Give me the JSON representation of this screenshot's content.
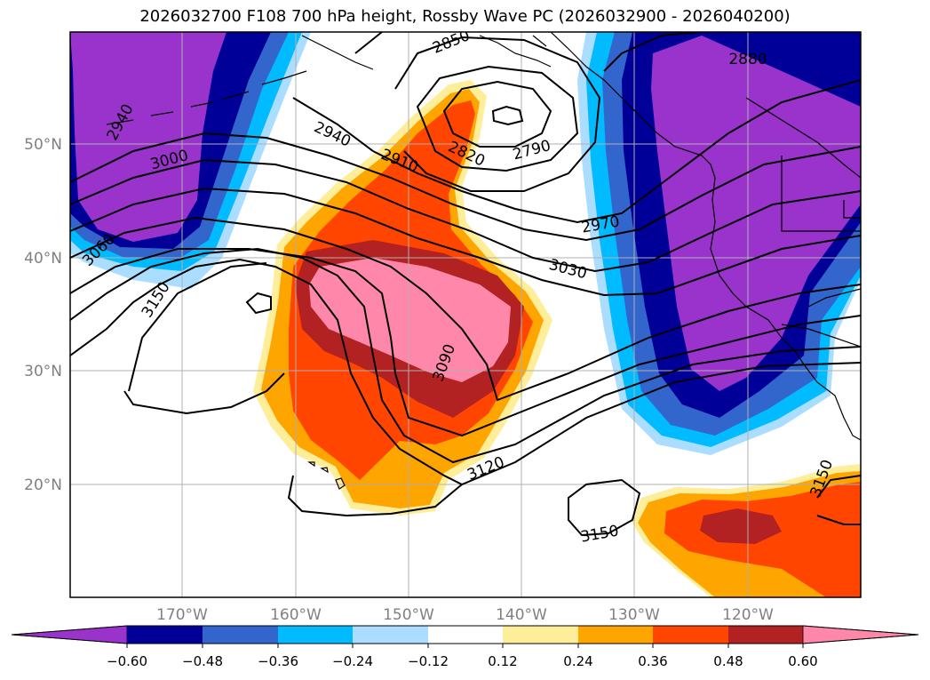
{
  "title": "2026032700 F108 700 hPa height, Rossby Wave PC (2026032900 - 2026040200)",
  "longitude_labels": [
    "170°W",
    "160°W",
    "150°W",
    "140°W",
    "130°W",
    "120°W"
  ],
  "latitude_labels": [
    "50°N",
    "40°N",
    "30°N",
    "20°N"
  ],
  "contour_labels": [
    "2850",
    "2880",
    "2940",
    "2940",
    "3000",
    "3060",
    "3150",
    "2910",
    "2820",
    "2790",
    "2970",
    "3030",
    "3090",
    "3120",
    "3150",
    "3150"
  ],
  "colorbar": {
    "tick_labels": [
      "−0.60",
      "−0.48",
      "−0.36",
      "−0.24",
      "−0.12",
      "0.12",
      "0.24",
      "0.36",
      "0.48",
      "0.60"
    ],
    "colors": [
      "#9933cc",
      "#000099",
      "#3366cc",
      "#00bbff",
      "#aaddff",
      "#ffffff",
      "#ffee99",
      "#ffa500",
      "#ff4500",
      "#b22222",
      "#ff88aa"
    ]
  },
  "colors": {
    "coast": "#000000",
    "grid": "#b0b0b0",
    "contour": "#000000"
  }
}
